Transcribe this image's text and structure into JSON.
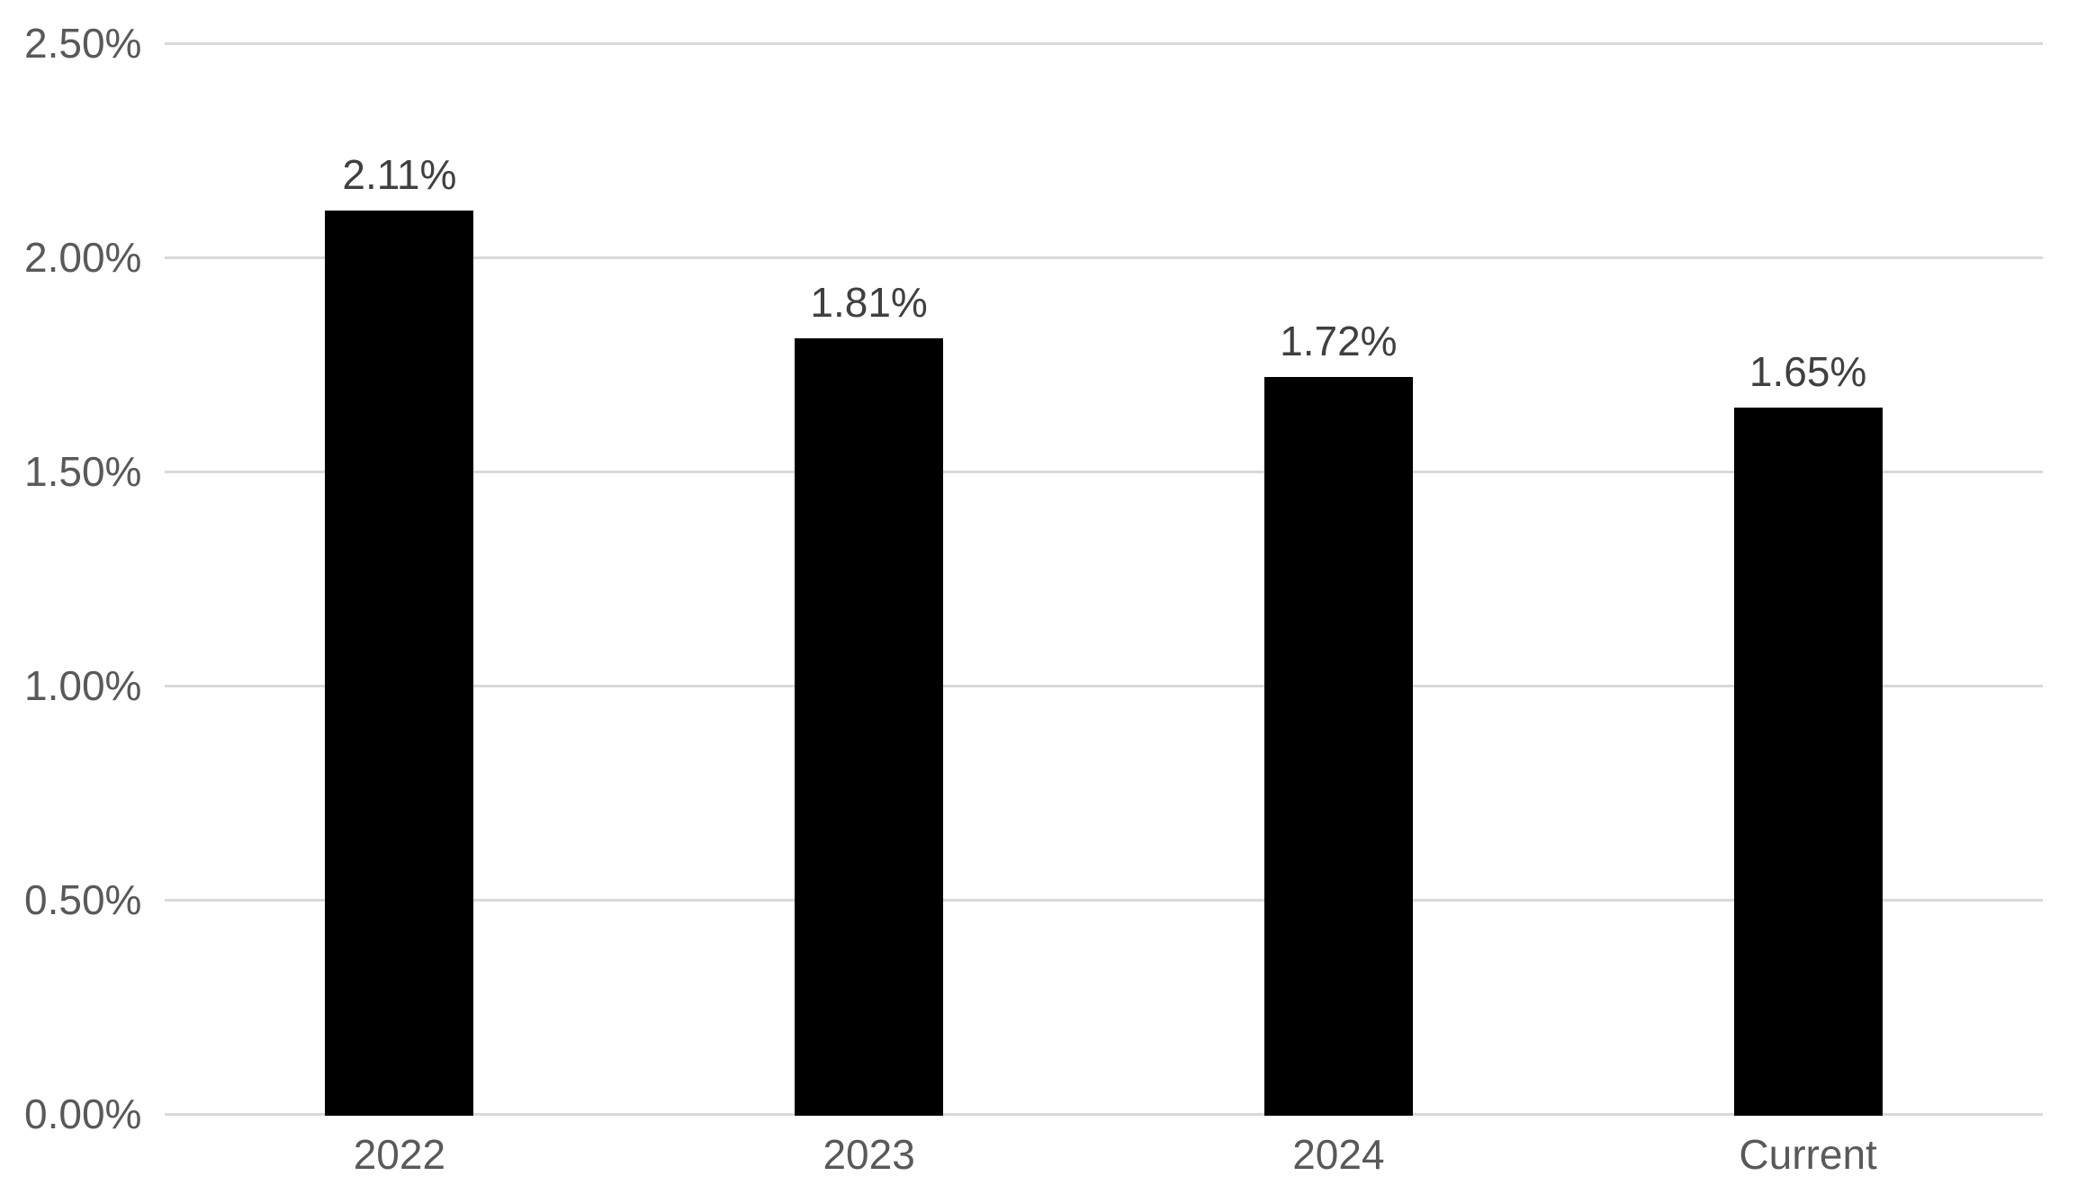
{
  "chart_data": {
    "type": "bar",
    "title": "",
    "xlabel": "",
    "ylabel": "",
    "categories": [
      "2022",
      "2023",
      "2024",
      "Current"
    ],
    "values": [
      2.11,
      1.81,
      1.72,
      1.65
    ],
    "value_labels": [
      "2.11%",
      "1.81%",
      "1.72%",
      "1.65%"
    ],
    "ylim": [
      0,
      2.5
    ],
    "y_ticks": [
      {
        "value": 0.0,
        "label": "0.00%"
      },
      {
        "value": 0.5,
        "label": "0.50%"
      },
      {
        "value": 1.0,
        "label": "1.00%"
      },
      {
        "value": 1.5,
        "label": "1.50%"
      },
      {
        "value": 2.0,
        "label": "2.00%"
      },
      {
        "value": 2.5,
        "label": "2.50%"
      }
    ],
    "grid": true,
    "legend": false,
    "colors": {
      "bar": "#000000",
      "gridline": "#d9d9d9",
      "axis_label": "#595959",
      "value_label": "#404040",
      "background": "#ffffff"
    }
  }
}
